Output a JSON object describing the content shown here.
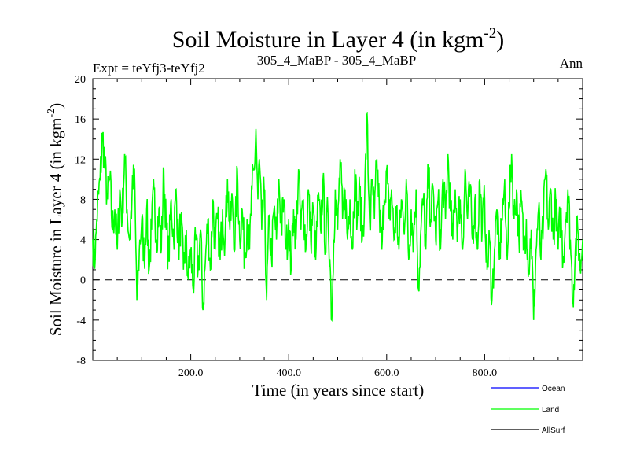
{
  "header": {
    "title_main": "Soil Moisture in Layer 4 (in kgm",
    "title_sup": "-2",
    "title_close": ")",
    "left": "Expt = teYfj3-teYfj2",
    "center": "305_4_MaBP - 305_4_MaBP",
    "right": "Ann"
  },
  "chart_data": {
    "type": "line",
    "title": "Soil Moisture in Layer 4 (in kgm-2)",
    "xlabel": "Time (in years since start)",
    "ylabel_main": "Soil Moisture in Layer 4 (in kgm",
    "ylabel_sup": "-2",
    "ylabel_close": ")",
    "xlim": [
      0,
      1000
    ],
    "ylim": [
      -8,
      20
    ],
    "x_ticks": [
      200,
      400,
      600,
      800
    ],
    "x_tick_labels": [
      "200.0",
      "400.0",
      "600.0",
      "800.0"
    ],
    "y_ticks": [
      -8,
      -4,
      0,
      4,
      8,
      12,
      16,
      20
    ],
    "y_tick_labels": [
      "-8",
      "-4",
      "0",
      "4",
      "8",
      "12",
      "16",
      "20"
    ],
    "zero_line": 0,
    "series": [
      {
        "name": "Ocean",
        "color": "#0000ff",
        "values": []
      },
      {
        "name": "Land",
        "color": "#00ff00",
        "anchors": [
          [
            0,
            4
          ],
          [
            5,
            2
          ],
          [
            8,
            6
          ],
          [
            15,
            10
          ],
          [
            20,
            14.5
          ],
          [
            25,
            11
          ],
          [
            30,
            8
          ],
          [
            35,
            10
          ],
          [
            40,
            5
          ],
          [
            45,
            7
          ],
          [
            50,
            3
          ],
          [
            55,
            9
          ],
          [
            60,
            6
          ],
          [
            65,
            12.5
          ],
          [
            70,
            7
          ],
          [
            75,
            4
          ],
          [
            80,
            8
          ],
          [
            85,
            11
          ],
          [
            90,
            -2
          ],
          [
            95,
            3
          ],
          [
            100,
            6
          ],
          [
            105,
            2
          ],
          [
            110,
            7
          ],
          [
            115,
            1
          ],
          [
            120,
            5
          ],
          [
            125,
            9
          ],
          [
            130,
            4
          ],
          [
            135,
            7
          ],
          [
            140,
            3
          ],
          [
            145,
            11
          ],
          [
            150,
            5
          ],
          [
            155,
            2
          ],
          [
            160,
            8
          ],
          [
            165,
            4
          ],
          [
            170,
            9
          ],
          [
            175,
            3
          ],
          [
            180,
            6
          ],
          [
            185,
            1
          ],
          [
            190,
            4
          ],
          [
            195,
            0
          ],
          [
            200,
            3
          ],
          [
            205,
            -1
          ],
          [
            210,
            4
          ],
          [
            215,
            1
          ],
          [
            220,
            5
          ],
          [
            225,
            -3
          ],
          [
            230,
            2
          ],
          [
            235,
            6
          ],
          [
            240,
            1
          ],
          [
            245,
            8
          ],
          [
            250,
            3
          ],
          [
            255,
            6
          ],
          [
            260,
            2
          ],
          [
            265,
            7
          ],
          [
            270,
            4
          ],
          [
            275,
            10
          ],
          [
            280,
            5
          ],
          [
            285,
            8
          ],
          [
            290,
            3
          ],
          [
            295,
            11
          ],
          [
            300,
            4
          ],
          [
            305,
            7
          ],
          [
            310,
            2
          ],
          [
            315,
            6
          ],
          [
            320,
            3
          ],
          [
            325,
            9
          ],
          [
            330,
            11
          ],
          [
            333,
            15
          ],
          [
            337,
            8
          ],
          [
            340,
            12
          ],
          [
            345,
            5
          ],
          [
            350,
            9
          ],
          [
            355,
            -2
          ],
          [
            360,
            6
          ],
          [
            365,
            2
          ],
          [
            370,
            7
          ],
          [
            375,
            4
          ],
          [
            380,
            10
          ],
          [
            385,
            5
          ],
          [
            390,
            8
          ],
          [
            395,
            3
          ],
          [
            400,
            6
          ],
          [
            405,
            1
          ],
          [
            410,
            7
          ],
          [
            415,
            4
          ],
          [
            420,
            11
          ],
          [
            425,
            5
          ],
          [
            430,
            8
          ],
          [
            435,
            3
          ],
          [
            440,
            9
          ],
          [
            445,
            4
          ],
          [
            450,
            7
          ],
          [
            455,
            2
          ],
          [
            460,
            8
          ],
          [
            465,
            5
          ],
          [
            470,
            10
          ],
          [
            475,
            3
          ],
          [
            480,
            7
          ],
          [
            485,
            1
          ],
          [
            488,
            -4
          ],
          [
            492,
            4
          ],
          [
            495,
            9
          ],
          [
            500,
            5
          ],
          [
            505,
            12
          ],
          [
            510,
            6
          ],
          [
            515,
            9
          ],
          [
            520,
            4
          ],
          [
            525,
            8
          ],
          [
            530,
            3
          ],
          [
            535,
            11
          ],
          [
            540,
            6
          ],
          [
            545,
            9
          ],
          [
            550,
            4
          ],
          [
            555,
            8
          ],
          [
            560,
            16.5
          ],
          [
            563,
            9
          ],
          [
            567,
            5
          ],
          [
            570,
            10
          ],
          [
            575,
            6
          ],
          [
            580,
            12
          ],
          [
            585,
            7
          ],
          [
            590,
            3
          ],
          [
            595,
            8
          ],
          [
            600,
            11
          ],
          [
            605,
            6
          ],
          [
            610,
            9
          ],
          [
            615,
            4
          ],
          [
            620,
            7
          ],
          [
            625,
            3
          ],
          [
            630,
            8
          ],
          [
            635,
            5
          ],
          [
            640,
            10
          ],
          [
            645,
            2
          ],
          [
            650,
            7
          ],
          [
            655,
            4
          ],
          [
            660,
            9
          ],
          [
            665,
            -1
          ],
          [
            670,
            5
          ],
          [
            675,
            8
          ],
          [
            680,
            3
          ],
          [
            685,
            11
          ],
          [
            690,
            6
          ],
          [
            695,
            9
          ],
          [
            700,
            4
          ],
          [
            705,
            8
          ],
          [
            710,
            3
          ],
          [
            715,
            10
          ],
          [
            720,
            6
          ],
          [
            725,
            12.5
          ],
          [
            730,
            7
          ],
          [
            735,
            4
          ],
          [
            740,
            9
          ],
          [
            745,
            5
          ],
          [
            750,
            8
          ],
          [
            755,
            3
          ],
          [
            760,
            11
          ],
          [
            765,
            6
          ],
          [
            770,
            9
          ],
          [
            775,
            4
          ],
          [
            780,
            8
          ],
          [
            785,
            3
          ],
          [
            790,
            10
          ],
          [
            795,
            5
          ],
          [
            800,
            8
          ],
          [
            805,
            1
          ],
          [
            810,
            4
          ],
          [
            815,
            -2
          ],
          [
            820,
            3
          ],
          [
            825,
            7
          ],
          [
            830,
            2
          ],
          [
            835,
            6
          ],
          [
            840,
            9
          ],
          [
            845,
            3
          ],
          [
            850,
            7
          ],
          [
            855,
            12.5
          ],
          [
            860,
            6
          ],
          [
            865,
            9
          ],
          [
            870,
            4
          ],
          [
            875,
            8
          ],
          [
            880,
            3
          ],
          [
            885,
            6
          ],
          [
            890,
            1
          ],
          [
            895,
            5
          ],
          [
            900,
            -4
          ],
          [
            905,
            3
          ],
          [
            910,
            7
          ],
          [
            915,
            2
          ],
          [
            920,
            6
          ],
          [
            925,
            11
          ],
          [
            930,
            5
          ],
          [
            935,
            9
          ],
          [
            940,
            4
          ],
          [
            945,
            8
          ],
          [
            950,
            3
          ],
          [
            955,
            7
          ],
          [
            960,
            2
          ],
          [
            965,
            6
          ],
          [
            970,
            9
          ],
          [
            975,
            4
          ],
          [
            980,
            -2
          ],
          [
            985,
            3
          ],
          [
            990,
            5
          ],
          [
            995,
            1
          ],
          [
            1000,
            4
          ]
        ]
      },
      {
        "name": "AllSurf",
        "color": "#000000",
        "values": []
      }
    ],
    "legend": [
      "Ocean",
      "Land",
      "AllSurf"
    ],
    "legend_placement": "bottom-right"
  }
}
